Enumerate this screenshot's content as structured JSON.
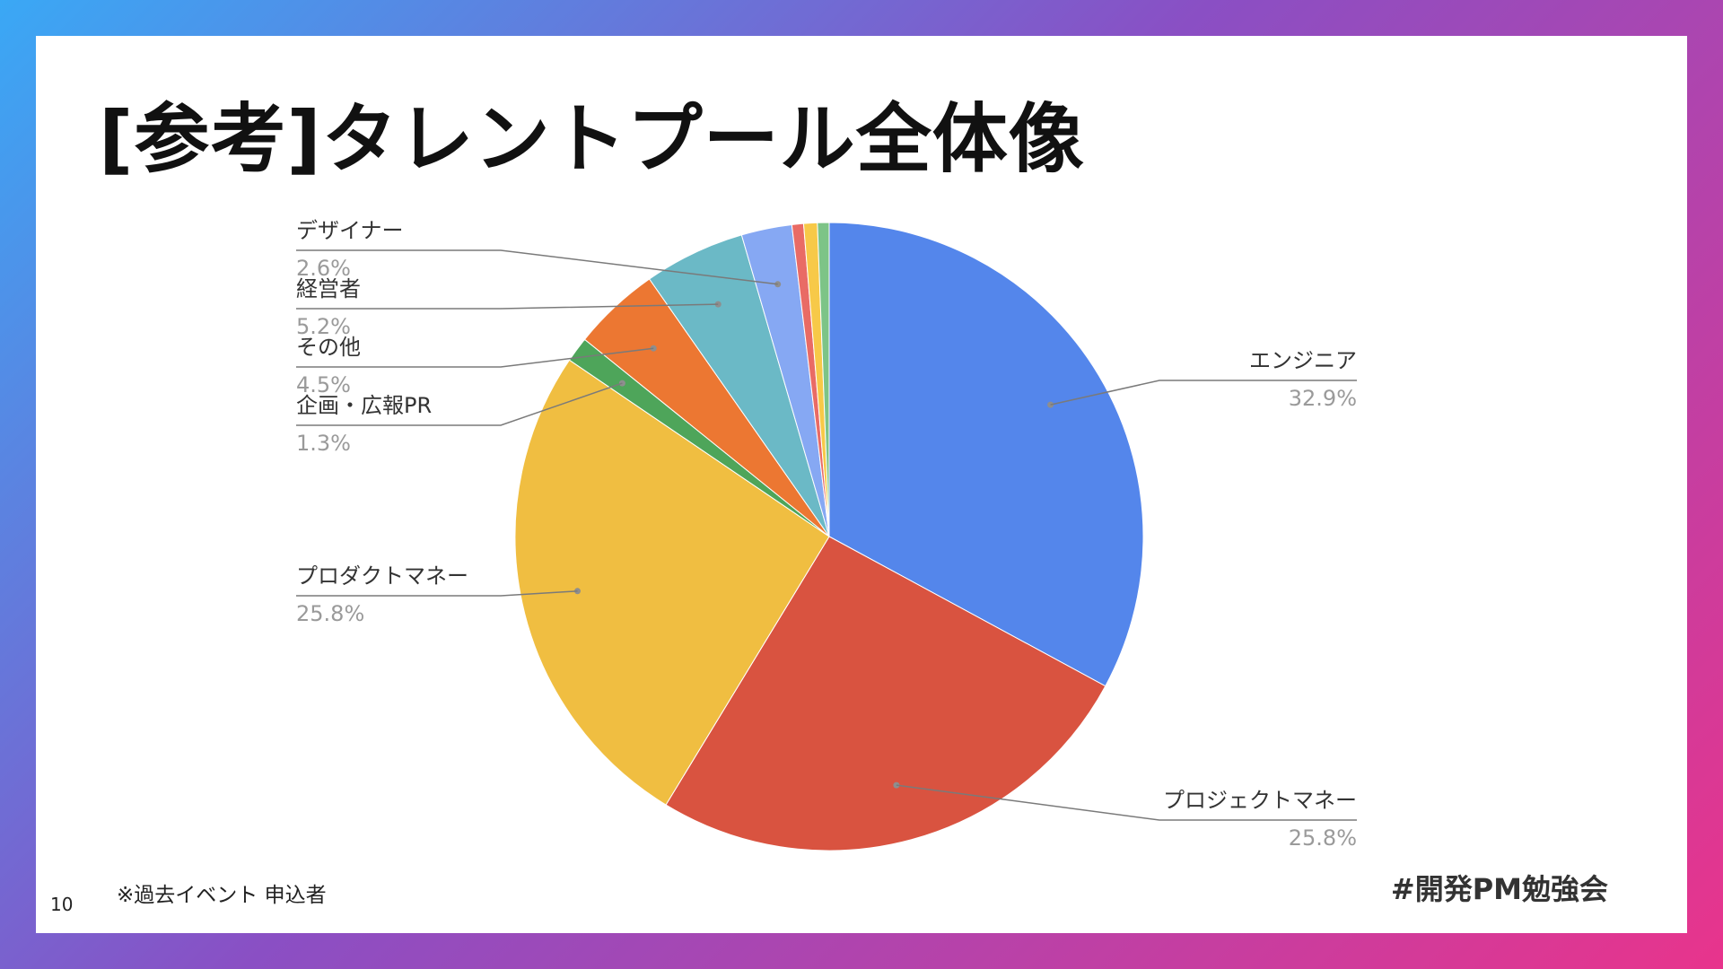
{
  "slide": {
    "title": "[参考]タレントプール全体像",
    "footnote": "※過去イベント 申込者",
    "page_number": "10",
    "hashtag": "#開発PM勉強会"
  },
  "chart_data": {
    "type": "pie",
    "title": "",
    "slices": [
      {
        "label": "エンジニア",
        "value": 32.9,
        "display": "32.9%",
        "color": "#5486eb",
        "labeled": true
      },
      {
        "label": "プロジェクトマネー",
        "value": 25.8,
        "display": "25.8%",
        "color": "#d95340",
        "labeled": true
      },
      {
        "label": "プロダクトマネー",
        "value": 25.8,
        "display": "25.8%",
        "color": "#f0be41",
        "labeled": true
      },
      {
        "label": "企画・広報PR",
        "value": 1.3,
        "display": "1.3%",
        "color": "#4ea55a",
        "labeled": true
      },
      {
        "label": "その他",
        "value": 4.5,
        "display": "4.5%",
        "color": "#ec7732",
        "labeled": true
      },
      {
        "label": "経営者",
        "value": 5.2,
        "display": "5.2%",
        "color": "#6bb9c6",
        "labeled": true
      },
      {
        "label": "デザイナー",
        "value": 2.6,
        "display": "2.6%",
        "color": "#86a8f3",
        "labeled": true
      },
      {
        "label": "",
        "value": 0.6,
        "display": "",
        "color": "#e96b65",
        "labeled": false
      },
      {
        "label": "",
        "value": 0.7,
        "display": "",
        "color": "#f7c948",
        "labeled": false
      },
      {
        "label": "",
        "value": 0.6,
        "display": "",
        "color": "#7dc487",
        "labeled": false
      }
    ]
  }
}
